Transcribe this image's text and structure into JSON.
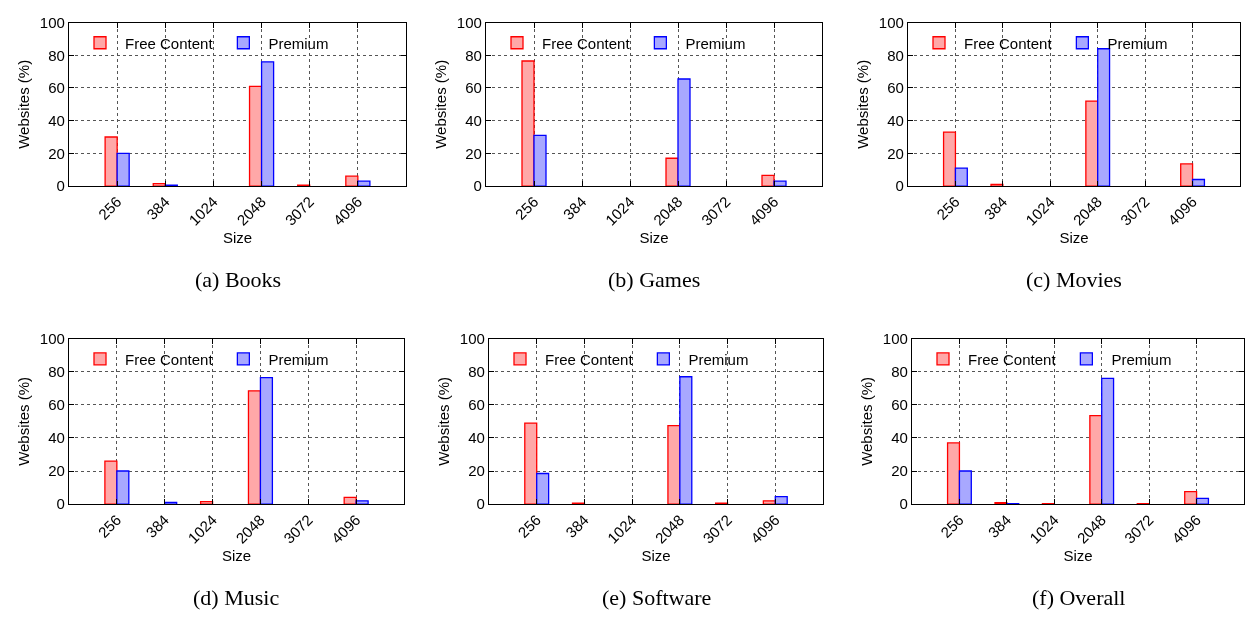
{
  "chart_data": [
    {
      "type": "bar",
      "title": "(a) Books",
      "xlabel": "Size",
      "ylabel": "Websites (%)",
      "categories": [
        "256",
        "384",
        "1024",
        "2048",
        "3072",
        "4096"
      ],
      "series": [
        {
          "name": "Free Content",
          "color": "#ffa8a8",
          "values": [
            30,
            1.5,
            0,
            61,
            0.5,
            6
          ]
        },
        {
          "name": "Premium",
          "color": "#a8a8ff",
          "values": [
            20,
            0.5,
            0,
            76,
            0,
            3
          ]
        }
      ],
      "ylim": [
        0,
        100
      ],
      "yticks": [
        0,
        20,
        40,
        60,
        80,
        100
      ],
      "grid": true,
      "legend": "top"
    },
    {
      "type": "bar",
      "title": "(b) Games",
      "xlabel": "Size",
      "ylabel": "Websites (%)",
      "categories": [
        "256",
        "384",
        "1024",
        "2048",
        "3072",
        "4096"
      ],
      "series": [
        {
          "name": "Free Content",
          "color": "#ffa8a8",
          "values": [
            76.5,
            0,
            0,
            17,
            0,
            6.5
          ]
        },
        {
          "name": "Premium",
          "color": "#a8a8ff",
          "values": [
            31,
            0,
            0,
            65.5,
            0,
            3
          ]
        }
      ],
      "ylim": [
        0,
        100
      ],
      "yticks": [
        0,
        20,
        40,
        60,
        80,
        100
      ],
      "grid": true,
      "legend": "top"
    },
    {
      "type": "bar",
      "title": "(c) Movies",
      "xlabel": "Size",
      "ylabel": "Websites (%)",
      "categories": [
        "256",
        "384",
        "1024",
        "2048",
        "3072",
        "4096"
      ],
      "series": [
        {
          "name": "Free Content",
          "color": "#ffa8a8",
          "values": [
            33,
            1,
            0,
            52,
            0,
            13.5
          ]
        },
        {
          "name": "Premium",
          "color": "#a8a8ff",
          "values": [
            11,
            0,
            0,
            84,
            0,
            4
          ]
        }
      ],
      "ylim": [
        0,
        100
      ],
      "yticks": [
        0,
        20,
        40,
        60,
        80,
        100
      ],
      "grid": true,
      "legend": "top"
    },
    {
      "type": "bar",
      "title": "(d) Music",
      "xlabel": "Size",
      "ylabel": "Websites (%)",
      "categories": [
        "256",
        "384",
        "1024",
        "2048",
        "3072",
        "4096"
      ],
      "series": [
        {
          "name": "Free Content",
          "color": "#ffa8a8",
          "values": [
            26,
            0,
            1.5,
            68.5,
            0,
            4
          ]
        },
        {
          "name": "Premium",
          "color": "#a8a8ff",
          "values": [
            20,
            1,
            0,
            76.5,
            0,
            2
          ]
        }
      ],
      "ylim": [
        0,
        100
      ],
      "yticks": [
        0,
        20,
        40,
        60,
        80,
        100
      ],
      "grid": true,
      "legend": "top"
    },
    {
      "type": "bar",
      "title": "(e) Software",
      "xlabel": "Size",
      "ylabel": "Websites (%)",
      "categories": [
        "256",
        "384",
        "1024",
        "2048",
        "3072",
        "4096"
      ],
      "series": [
        {
          "name": "Free Content",
          "color": "#ffa8a8",
          "values": [
            49,
            0.5,
            0,
            47.5,
            0.5,
            2
          ]
        },
        {
          "name": "Premium",
          "color": "#a8a8ff",
          "values": [
            18.5,
            0,
            0,
            77,
            0,
            4.5
          ]
        }
      ],
      "ylim": [
        0,
        100
      ],
      "yticks": [
        0,
        20,
        40,
        60,
        80,
        100
      ],
      "grid": true,
      "legend": "top"
    },
    {
      "type": "bar",
      "title": "(f) Overall",
      "xlabel": "Size",
      "ylabel": "Websites (%)",
      "categories": [
        "256",
        "384",
        "1024",
        "2048",
        "3072",
        "4096"
      ],
      "series": [
        {
          "name": "Free Content",
          "color": "#ffa8a8",
          "values": [
            37,
            0.8,
            0.3,
            53.5,
            0.3,
            7.5
          ]
        },
        {
          "name": "Premium",
          "color": "#a8a8ff",
          "values": [
            20,
            0.3,
            0,
            76,
            0,
            3.5
          ]
        }
      ],
      "ylim": [
        0,
        100
      ],
      "yticks": [
        0,
        20,
        40,
        60,
        80,
        100
      ],
      "grid": true,
      "legend": "top"
    }
  ]
}
